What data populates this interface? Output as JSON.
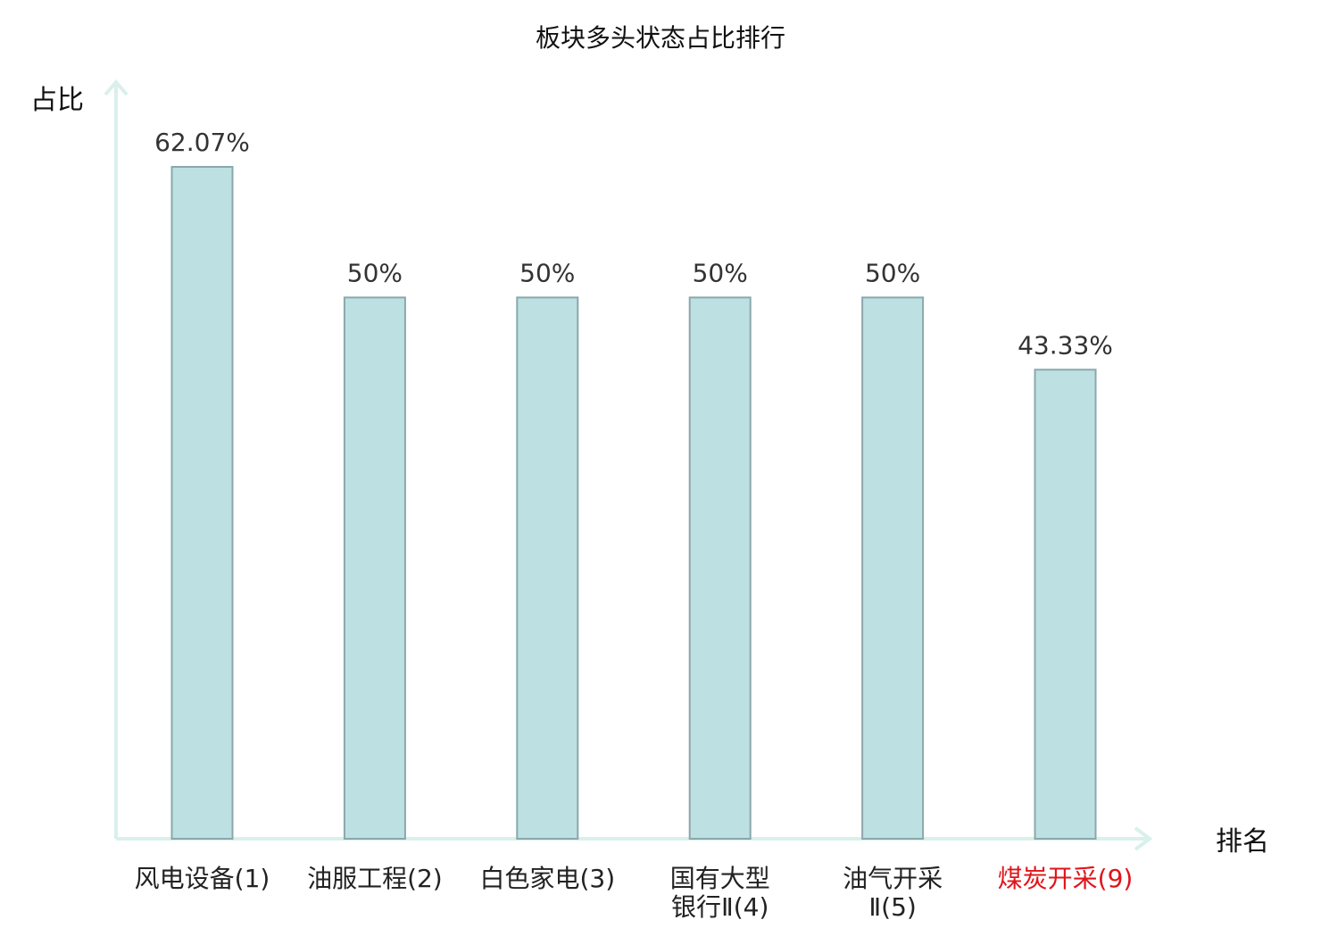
{
  "chart_data": {
    "type": "bar",
    "title": "板块多头状态占比排行",
    "xlabel": "排名",
    "ylabel": "占比",
    "categories": [
      [
        "风电设备(1)"
      ],
      [
        "油服工程(2)"
      ],
      [
        "白色家电(3)"
      ],
      [
        "国有大型",
        "银行Ⅱ(4)"
      ],
      [
        "油气开采",
        "Ⅱ(5)"
      ],
      [
        "煤炭开采(9)"
      ]
    ],
    "values": [
      62.07,
      50,
      50,
      50,
      50,
      43.33
    ],
    "value_labels": [
      "62.07%",
      "50%",
      "50%",
      "50%",
      "50%",
      "43.33%"
    ],
    "highlight_index": 5,
    "ylim": [
      0,
      70
    ],
    "grid": false,
    "legend": "none",
    "colors": {
      "bar_fill": "#bde0e3",
      "bar_stroke": "#8aa8ab",
      "axis": "#d9f0ec",
      "label_default": "#222222",
      "label_highlight": "#e0141a"
    }
  }
}
